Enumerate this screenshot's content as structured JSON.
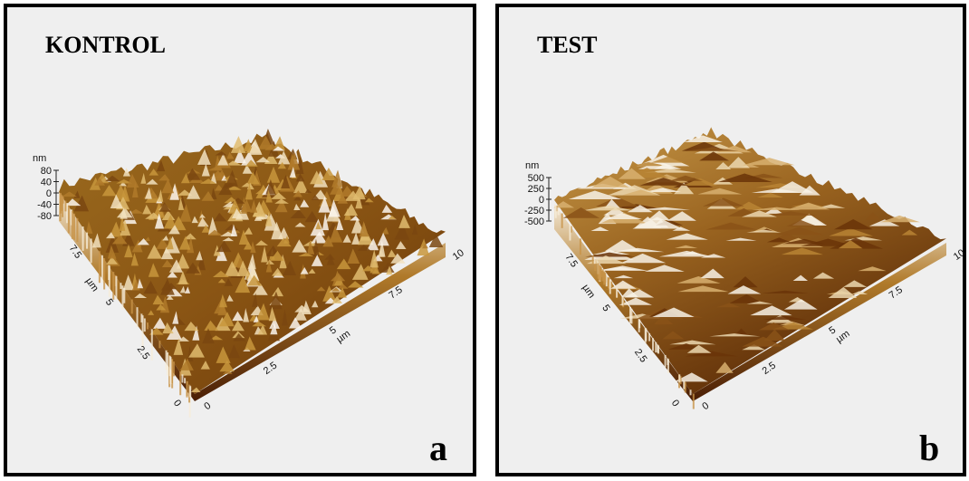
{
  "panels": [
    {
      "title": "KONTROL",
      "letter": "a",
      "z_unit": "nm",
      "z_ticks": [
        "80",
        "40",
        "0",
        "-40",
        "-80"
      ],
      "y_axis": {
        "ticks": [
          "0",
          "2.5",
          "5",
          "7.5"
        ],
        "unit": "µm"
      },
      "x_axis": {
        "ticks": [
          "0",
          "2.5",
          "5",
          "7.5",
          "10"
        ],
        "unit": "µm"
      }
    },
    {
      "title": "TEST",
      "letter": "b",
      "z_unit": "nm",
      "z_ticks": [
        "500",
        "250",
        "0",
        "-250",
        "-500"
      ],
      "y_axis": {
        "ticks": [
          "0",
          "2.5",
          "5",
          "7.5"
        ],
        "unit": "µm"
      },
      "x_axis": {
        "ticks": [
          "0",
          "2.5",
          "5",
          "7.5",
          "10"
        ],
        "unit": "µm"
      }
    }
  ]
}
